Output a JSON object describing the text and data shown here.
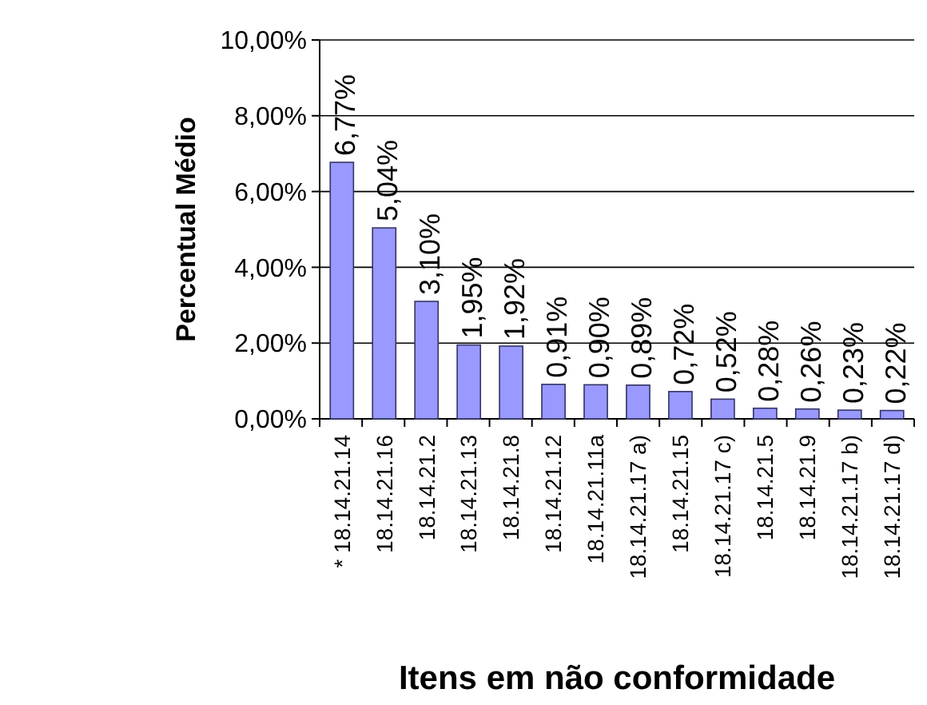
{
  "chart_data": {
    "type": "bar",
    "xlabel": "Itens em não conformidade",
    "ylabel": "Percentual Médio",
    "categories": [
      "* 18.14.21.14",
      "18.14.21.16",
      "18.14.21.2",
      "18.14.21.13",
      "18.14.21.8",
      "18.14.21.12",
      "18.14.21.11a",
      "18.14.21.17 a)",
      "18.14.21.15",
      "18.14.21.17 c)",
      "18.14.21.5",
      "18.14.21.9",
      "18.14.21.17 b)",
      "18.14.21.17 d)"
    ],
    "values": [
      6.77,
      5.04,
      3.1,
      1.95,
      1.92,
      0.91,
      0.9,
      0.89,
      0.72,
      0.52,
      0.28,
      0.26,
      0.23,
      0.22
    ],
    "value_labels": [
      "6,77%",
      "5,04%",
      "3,10%",
      "1,95%",
      "1,92%",
      "0,91%",
      "0,90%",
      "0,89%",
      "0,72%",
      "0,52%",
      "0,28%",
      "0,26%",
      "0,23%",
      "0,22%"
    ],
    "color": "#9999ff",
    "ylim": [
      0,
      10
    ],
    "yticks": [
      {
        "value": 0,
        "label": "0,00%"
      },
      {
        "value": 2,
        "label": "2,00%"
      },
      {
        "value": 4,
        "label": "4,00%"
      },
      {
        "value": 6,
        "label": "6,00%"
      },
      {
        "value": 8,
        "label": "8,00%"
      },
      {
        "value": 10,
        "label": "10,00%"
      }
    ],
    "grid": "y"
  }
}
